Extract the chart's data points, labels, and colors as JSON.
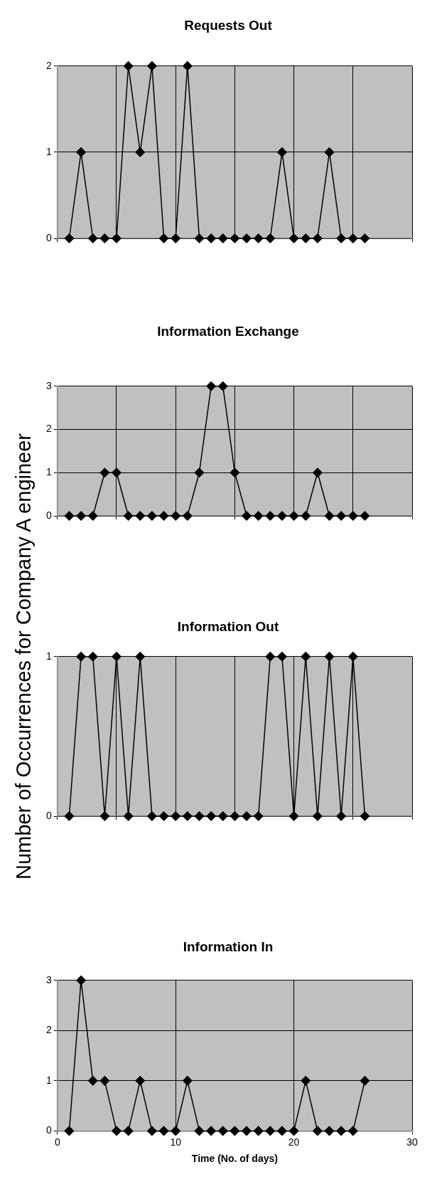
{
  "chart_data": [
    {
      "type": "line",
      "title": "Requests Out",
      "x": [
        1,
        2,
        3,
        4,
        5,
        6,
        7,
        8,
        9,
        10,
        11,
        12,
        13,
        14,
        15,
        16,
        17,
        18,
        19,
        20,
        21,
        22,
        23,
        24,
        25,
        26
      ],
      "series": [
        {
          "color": "#000000",
          "values": [
            0,
            1,
            0,
            0,
            0,
            2,
            1,
            2,
            0,
            0,
            2,
            0,
            0,
            0,
            0,
            0,
            0,
            0,
            1,
            0,
            0,
            0,
            1,
            0,
            0,
            0
          ]
        }
      ],
      "xlim": [
        0,
        30
      ],
      "xticks": [
        {
          "value": 0,
          "label": null
        },
        {
          "value": 5,
          "label": null
        },
        {
          "value": 10,
          "label": null
        },
        {
          "value": 15,
          "label": null
        },
        {
          "value": 20,
          "label": null
        },
        {
          "value": 25,
          "label": null
        },
        {
          "value": 30,
          "label": null
        }
      ],
      "ylim": [
        0,
        2
      ],
      "yticks": [
        0,
        1,
        2
      ],
      "grid": true,
      "legend": false,
      "marker": "diamond",
      "tick_labels": "y"
    },
    {
      "type": "line",
      "title": "Information Exchange",
      "x": [
        1,
        2,
        3,
        4,
        5,
        6,
        7,
        8,
        9,
        10,
        11,
        12,
        13,
        14,
        15,
        16,
        17,
        18,
        19,
        20,
        21,
        22,
        23,
        24,
        25,
        26
      ],
      "series": [
        {
          "color": "#000000",
          "values": [
            0,
            0,
            0,
            1,
            1,
            0,
            0,
            0,
            0,
            0,
            0,
            1,
            3,
            3,
            1,
            0,
            0,
            0,
            0,
            0,
            0,
            1,
            0,
            0,
            0,
            0
          ]
        }
      ],
      "xlim": [
        0,
        30
      ],
      "xticks": [
        {
          "value": 0,
          "label": null
        },
        {
          "value": 5,
          "label": null
        },
        {
          "value": 10,
          "label": null
        },
        {
          "value": 15,
          "label": null
        },
        {
          "value": 20,
          "label": null
        },
        {
          "value": 25,
          "label": null
        },
        {
          "value": 30,
          "label": null
        }
      ],
      "ylim": [
        0,
        3
      ],
      "yticks": [
        0,
        1,
        2,
        3
      ],
      "grid": true,
      "legend": false,
      "marker": "diamond",
      "tick_labels": "y"
    },
    {
      "type": "line",
      "title": "Information Out",
      "ylabel": "Number of Occurrences for Company A engineer",
      "x": [
        1,
        2,
        3,
        4,
        5,
        6,
        7,
        8,
        9,
        10,
        11,
        12,
        13,
        14,
        15,
        16,
        17,
        18,
        19,
        20,
        21,
        22,
        23,
        24,
        25,
        26
      ],
      "series": [
        {
          "color": "#000000",
          "values": [
            0,
            1,
            1,
            0,
            1,
            0,
            1,
            0,
            0,
            0,
            0,
            0,
            0,
            0,
            0,
            0,
            0,
            1,
            1,
            0,
            1,
            0,
            1,
            0,
            1,
            0
          ]
        }
      ],
      "xlim": [
        0,
        30
      ],
      "xticks": [
        {
          "value": 0,
          "label": null
        },
        {
          "value": 5,
          "label": null
        },
        {
          "value": 10,
          "label": null
        },
        {
          "value": 15,
          "label": null
        },
        {
          "value": 20,
          "label": null
        },
        {
          "value": 25,
          "label": null
        },
        {
          "value": 30,
          "label": null
        }
      ],
      "ylim": [
        0,
        1
      ],
      "yticks": [
        0,
        1
      ],
      "grid": true,
      "legend": false,
      "marker": "diamond",
      "tick_labels": "y"
    },
    {
      "type": "line",
      "title": "Information In",
      "xlabel": "Time (No. of days)",
      "x": [
        1,
        2,
        3,
        4,
        5,
        6,
        7,
        8,
        9,
        10,
        11,
        12,
        13,
        14,
        15,
        16,
        17,
        18,
        19,
        20,
        21,
        22,
        23,
        24,
        25,
        26
      ],
      "series": [
        {
          "color": "#000000",
          "values": [
            0,
            3,
            1,
            1,
            0,
            0,
            1,
            0,
            0,
            0,
            1,
            0,
            0,
            0,
            0,
            0,
            0,
            0,
            0,
            0,
            1,
            0,
            0,
            0,
            0,
            1
          ]
        }
      ],
      "xlim": [
        0,
        30
      ],
      "xticks": [
        0,
        10,
        20,
        30
      ],
      "ylim": [
        0,
        3
      ],
      "yticks": [
        0,
        1,
        2,
        3
      ],
      "grid": true,
      "legend": false,
      "marker": "diamond"
    }
  ]
}
